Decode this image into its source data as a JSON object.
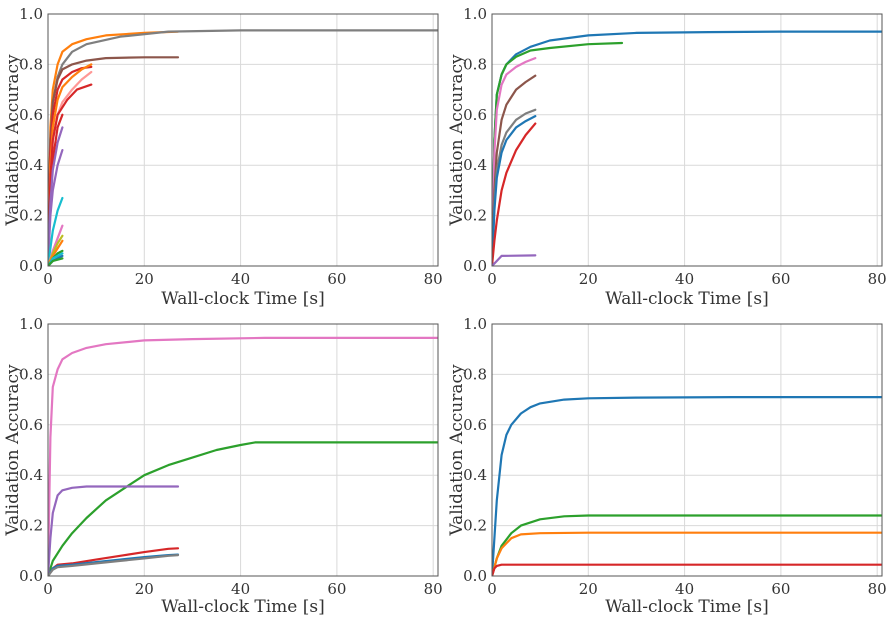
{
  "chart_data": [
    {
      "type": "line",
      "xlabel": "Wall-clock Time [s]",
      "ylabel": "Validation Accuracy",
      "xlim": [
        0,
        81
      ],
      "ylim": [
        0,
        1.0
      ],
      "xticks": [
        0,
        20,
        40,
        60,
        80
      ],
      "yticks": [
        0.0,
        0.2,
        0.4,
        0.6,
        0.8,
        1.0
      ],
      "grid": true,
      "series": [
        {
          "color": "#ff7f0e",
          "x": [
            0,
            0.5,
            1,
            2,
            3,
            5,
            8,
            12,
            20,
            27
          ],
          "y": [
            0,
            0.55,
            0.7,
            0.8,
            0.85,
            0.88,
            0.9,
            0.915,
            0.925,
            0.93
          ]
        },
        {
          "color": "#7f7f7f",
          "x": [
            0,
            0.5,
            1,
            2,
            3,
            5,
            8,
            15,
            25,
            40,
            60,
            81
          ],
          "y": [
            0,
            0.5,
            0.65,
            0.75,
            0.8,
            0.85,
            0.88,
            0.91,
            0.93,
            0.935,
            0.935,
            0.935
          ]
        },
        {
          "color": "#8c564b",
          "x": [
            0,
            0.5,
            1,
            2,
            3,
            5,
            8,
            12,
            20,
            27
          ],
          "y": [
            0,
            0.5,
            0.65,
            0.74,
            0.78,
            0.8,
            0.815,
            0.825,
            0.828,
            0.828
          ]
        },
        {
          "color": "#d62728",
          "x": [
            0,
            0.5,
            1,
            2,
            3,
            5,
            7,
            9
          ],
          "y": [
            0,
            0.45,
            0.6,
            0.7,
            0.74,
            0.77,
            0.785,
            0.79
          ]
        },
        {
          "color": "#ff7f0e",
          "x": [
            0,
            0.5,
            1,
            2,
            3,
            5,
            7,
            9
          ],
          "y": [
            0,
            0.4,
            0.55,
            0.66,
            0.71,
            0.75,
            0.78,
            0.8
          ]
        },
        {
          "color": "#ff9896",
          "x": [
            0,
            0.5,
            1,
            2,
            3,
            5,
            7,
            9
          ],
          "y": [
            0,
            0.35,
            0.5,
            0.6,
            0.65,
            0.7,
            0.74,
            0.77
          ]
        },
        {
          "color": "#d62728",
          "x": [
            0,
            0.5,
            1,
            2,
            4,
            6,
            9
          ],
          "y": [
            0,
            0.35,
            0.5,
            0.6,
            0.66,
            0.7,
            0.72
          ]
        },
        {
          "color": "#d62728",
          "x": [
            0,
            0.5,
            1,
            2,
            3
          ],
          "y": [
            0,
            0.3,
            0.42,
            0.55,
            0.6
          ]
        },
        {
          "color": "#9467bd",
          "x": [
            0,
            0.5,
            1,
            2,
            3
          ],
          "y": [
            0,
            0.25,
            0.38,
            0.49,
            0.55
          ]
        },
        {
          "color": "#9467bd",
          "x": [
            0,
            0.5,
            1,
            2,
            3
          ],
          "y": [
            0,
            0.2,
            0.3,
            0.4,
            0.46
          ]
        },
        {
          "color": "#17becf",
          "x": [
            0,
            0.5,
            1,
            2,
            3
          ],
          "y": [
            0,
            0.07,
            0.14,
            0.22,
            0.27
          ]
        },
        {
          "color": "#e377c2",
          "x": [
            0,
            1,
            2,
            3
          ],
          "y": [
            0,
            0.06,
            0.11,
            0.16
          ]
        },
        {
          "color": "#bcbd22",
          "x": [
            0,
            1,
            2,
            3
          ],
          "y": [
            0,
            0.05,
            0.09,
            0.12
          ]
        },
        {
          "color": "#ff7f0e",
          "x": [
            0,
            1,
            2,
            3
          ],
          "y": [
            0,
            0.04,
            0.07,
            0.1
          ]
        },
        {
          "color": "#2ca02c",
          "x": [
            0,
            1,
            2,
            3
          ],
          "y": [
            0,
            0.03,
            0.05,
            0.06
          ]
        },
        {
          "color": "#17becf",
          "x": [
            0,
            1,
            2,
            3
          ],
          "y": [
            0,
            0.03,
            0.04,
            0.05
          ]
        },
        {
          "color": "#1f77b4",
          "x": [
            0,
            1,
            2,
            3
          ],
          "y": [
            0,
            0.02,
            0.03,
            0.04
          ]
        },
        {
          "color": "#2ca02c",
          "x": [
            0,
            1,
            2,
            3
          ],
          "y": [
            0,
            0.02,
            0.025,
            0.03
          ]
        }
      ]
    },
    {
      "type": "line",
      "xlabel": "Wall-clock Time [s]",
      "ylabel": "Validation Accuracy",
      "xlim": [
        0,
        81
      ],
      "ylim": [
        0,
        1.0
      ],
      "xticks": [
        0,
        20,
        40,
        60,
        80
      ],
      "yticks": [
        0.0,
        0.2,
        0.4,
        0.6,
        0.8,
        1.0
      ],
      "grid": true,
      "series": [
        {
          "color": "#1f77b4",
          "x": [
            0,
            0.5,
            1,
            2,
            3,
            5,
            8,
            12,
            20,
            30,
            45,
            60,
            81
          ],
          "y": [
            0,
            0.5,
            0.68,
            0.76,
            0.8,
            0.84,
            0.87,
            0.895,
            0.915,
            0.925,
            0.928,
            0.93,
            0.93
          ]
        },
        {
          "color": "#2ca02c",
          "x": [
            0,
            0.5,
            1,
            2,
            3,
            5,
            8,
            12,
            20,
            27
          ],
          "y": [
            0,
            0.5,
            0.68,
            0.76,
            0.8,
            0.83,
            0.855,
            0.865,
            0.88,
            0.885
          ]
        },
        {
          "color": "#e377c2",
          "x": [
            0,
            0.5,
            1,
            2,
            3,
            5,
            7,
            9
          ],
          "y": [
            0,
            0.45,
            0.62,
            0.72,
            0.76,
            0.79,
            0.81,
            0.825
          ]
        },
        {
          "color": "#8c564b",
          "x": [
            0,
            0.5,
            1,
            2,
            3,
            5,
            7,
            9
          ],
          "y": [
            0,
            0.3,
            0.45,
            0.58,
            0.64,
            0.7,
            0.73,
            0.755
          ]
        },
        {
          "color": "#7f7f7f",
          "x": [
            0,
            0.5,
            1,
            2,
            3,
            5,
            7,
            9
          ],
          "y": [
            0,
            0.25,
            0.38,
            0.48,
            0.53,
            0.58,
            0.605,
            0.62
          ]
        },
        {
          "color": "#1f77b4",
          "x": [
            0,
            0.5,
            1,
            2,
            3,
            5,
            7,
            9
          ],
          "y": [
            0,
            0.22,
            0.35,
            0.45,
            0.5,
            0.55,
            0.575,
            0.595
          ]
        },
        {
          "color": "#d62728",
          "x": [
            0,
            0.5,
            1,
            2,
            3,
            5,
            7,
            9
          ],
          "y": [
            0,
            0.1,
            0.18,
            0.3,
            0.37,
            0.46,
            0.52,
            0.565
          ]
        },
        {
          "color": "#9467bd",
          "x": [
            0,
            1,
            2,
            9
          ],
          "y": [
            0,
            0.02,
            0.04,
            0.042
          ]
        }
      ]
    },
    {
      "type": "line",
      "xlabel": "Wall-clock Time [s]",
      "ylabel": "Validation Accuracy",
      "xlim": [
        0,
        81
      ],
      "ylim": [
        0,
        1.0
      ],
      "xticks": [
        0,
        20,
        40,
        60,
        80
      ],
      "yticks": [
        0.0,
        0.2,
        0.4,
        0.6,
        0.8,
        1.0
      ],
      "grid": true,
      "series": [
        {
          "color": "#e377c2",
          "x": [
            0,
            0.5,
            1,
            2,
            3,
            5,
            8,
            12,
            20,
            30,
            45,
            60,
            81
          ],
          "y": [
            0,
            0.55,
            0.75,
            0.82,
            0.86,
            0.885,
            0.905,
            0.92,
            0.935,
            0.94,
            0.945,
            0.945,
            0.945
          ]
        },
        {
          "color": "#2ca02c",
          "x": [
            0,
            1,
            3,
            5,
            8,
            12,
            16,
            20,
            25,
            30,
            35,
            40,
            43,
            60,
            81
          ],
          "y": [
            0,
            0.06,
            0.12,
            0.17,
            0.23,
            0.3,
            0.35,
            0.4,
            0.44,
            0.47,
            0.5,
            0.52,
            0.53,
            0.53,
            0.53
          ]
        },
        {
          "color": "#9467bd",
          "x": [
            0,
            0.5,
            1,
            2,
            3,
            5,
            8,
            12,
            20,
            27
          ],
          "y": [
            0,
            0.15,
            0.25,
            0.32,
            0.34,
            0.35,
            0.355,
            0.355,
            0.355,
            0.355
          ]
        },
        {
          "color": "#d62728",
          "x": [
            0,
            1,
            2,
            5,
            10,
            15,
            20,
            25,
            27
          ],
          "y": [
            0,
            0.03,
            0.045,
            0.05,
            0.065,
            0.08,
            0.095,
            0.108,
            0.11
          ]
        },
        {
          "color": "#1f77b4",
          "x": [
            0,
            1,
            2,
            5,
            10,
            15,
            20,
            25,
            27
          ],
          "y": [
            0,
            0.03,
            0.04,
            0.045,
            0.055,
            0.065,
            0.075,
            0.083,
            0.085
          ]
        },
        {
          "color": "#7f7f7f",
          "x": [
            0,
            1,
            2,
            5,
            10,
            15,
            20,
            25,
            27
          ],
          "y": [
            0,
            0.025,
            0.035,
            0.04,
            0.05,
            0.06,
            0.07,
            0.08,
            0.083
          ]
        }
      ]
    },
    {
      "type": "line",
      "xlabel": "Wall-clock Time [s]",
      "ylabel": "Validation Accuracy",
      "xlim": [
        0,
        81
      ],
      "ylim": [
        0,
        1.0
      ],
      "xticks": [
        0,
        20,
        40,
        60,
        80
      ],
      "yticks": [
        0.0,
        0.2,
        0.4,
        0.6,
        0.8,
        1.0
      ],
      "grid": true,
      "series": [
        {
          "color": "#1f77b4",
          "x": [
            0,
            0.5,
            1,
            2,
            3,
            4,
            6,
            8,
            10,
            15,
            20,
            30,
            50,
            81
          ],
          "y": [
            0,
            0.15,
            0.3,
            0.48,
            0.56,
            0.6,
            0.645,
            0.67,
            0.685,
            0.7,
            0.705,
            0.708,
            0.71,
            0.71
          ]
        },
        {
          "color": "#2ca02c",
          "x": [
            0,
            1,
            2,
            4,
            6,
            10,
            15,
            20,
            81
          ],
          "y": [
            0,
            0.07,
            0.12,
            0.17,
            0.2,
            0.225,
            0.237,
            0.24,
            0.24
          ]
        },
        {
          "color": "#ff7f0e",
          "x": [
            0,
            1,
            2,
            4,
            6,
            10,
            20,
            81
          ],
          "y": [
            0,
            0.07,
            0.11,
            0.15,
            0.165,
            0.17,
            0.172,
            0.172
          ]
        },
        {
          "color": "#d62728",
          "x": [
            0,
            0.5,
            1,
            2,
            81
          ],
          "y": [
            0,
            0.03,
            0.04,
            0.045,
            0.045
          ]
        }
      ]
    }
  ]
}
